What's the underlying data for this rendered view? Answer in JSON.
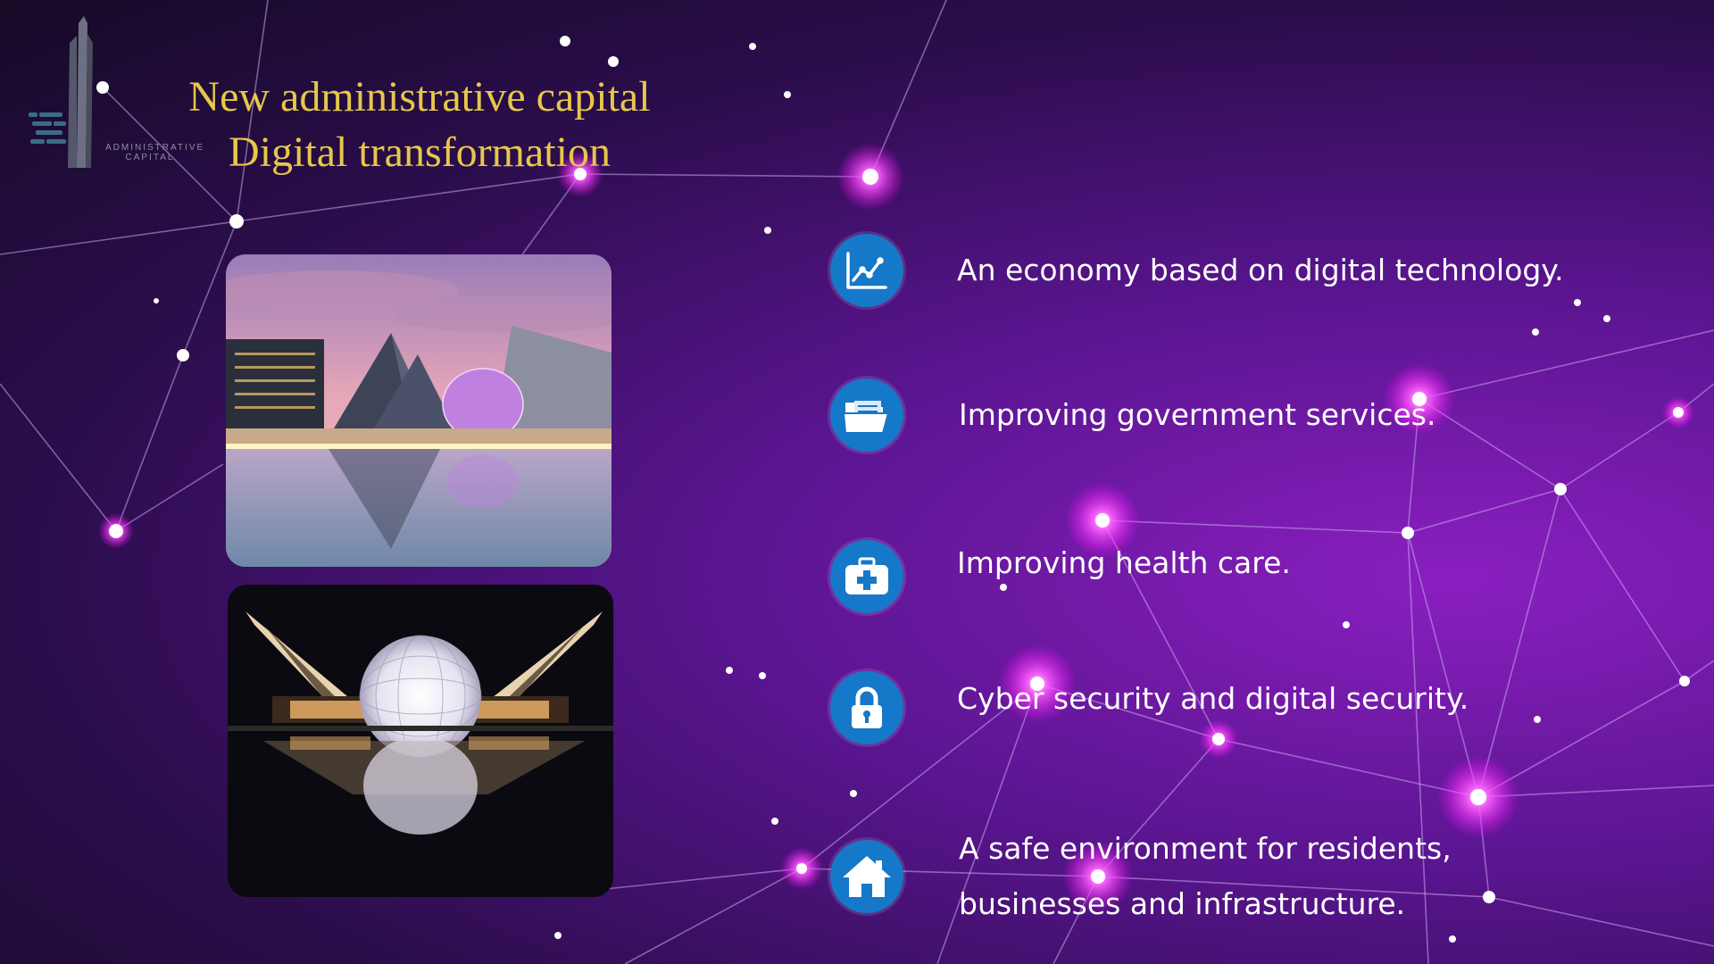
{
  "slide": {
    "title_line1": "New administrative capital",
    "title_line2": "Digital transformation",
    "logo_text": "ADMINISTRATIVE CAPITAL",
    "accent_color": "#e6c74a",
    "icon_color": "#1578c9"
  },
  "photos": [
    {
      "name": "photo-pyramids-dome-day",
      "subject": "pyramid buildings and dome at dusk"
    },
    {
      "name": "photo-dome-night",
      "subject": "illuminated dome at night"
    }
  ],
  "items": [
    {
      "icon": "chart-icon",
      "label": "An economy based on digital technology."
    },
    {
      "icon": "folder-icon",
      "label": "Improving government services."
    },
    {
      "icon": "medical-kit-icon",
      "label": "Improving health care."
    },
    {
      "icon": "lock-icon",
      "label": "Cyber security and digital security."
    },
    {
      "icon": "house-icon",
      "label_line1": "A safe environment for residents,",
      "label_line2": "businesses and infrastructure."
    }
  ]
}
